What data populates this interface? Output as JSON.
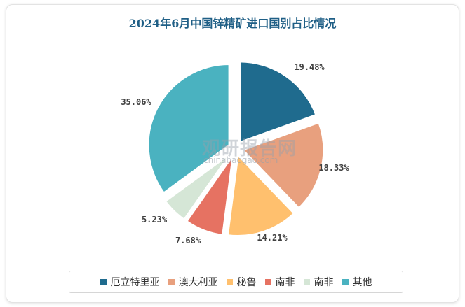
{
  "chart_data": {
    "type": "pie",
    "title": "2024年6月中国锌精矿进口国别占比情况",
    "slices": [
      {
        "name": "厄立特里亚",
        "value": 19.48,
        "label": "19.48%",
        "color": "#1f6b8e"
      },
      {
        "name": "澳大利亚",
        "value": 18.33,
        "label": "18.33%",
        "color": "#e8a07e"
      },
      {
        "name": "秘鲁",
        "value": 14.21,
        "label": "14.21%",
        "color": "#ffc06e"
      },
      {
        "name": "南非",
        "value": 7.68,
        "label": "7.68%",
        "color": "#e67262"
      },
      {
        "name": "南非",
        "value": 5.23,
        "label": "5.23%",
        "color": "#d5e6d6"
      },
      {
        "name": "其他",
        "value": 35.06,
        "label": "35.06%",
        "color": "#4ab2c0"
      }
    ],
    "legend_position": "bottom"
  },
  "watermark": {
    "text": "观研报告网",
    "subtext": "chinabaogao.com"
  }
}
